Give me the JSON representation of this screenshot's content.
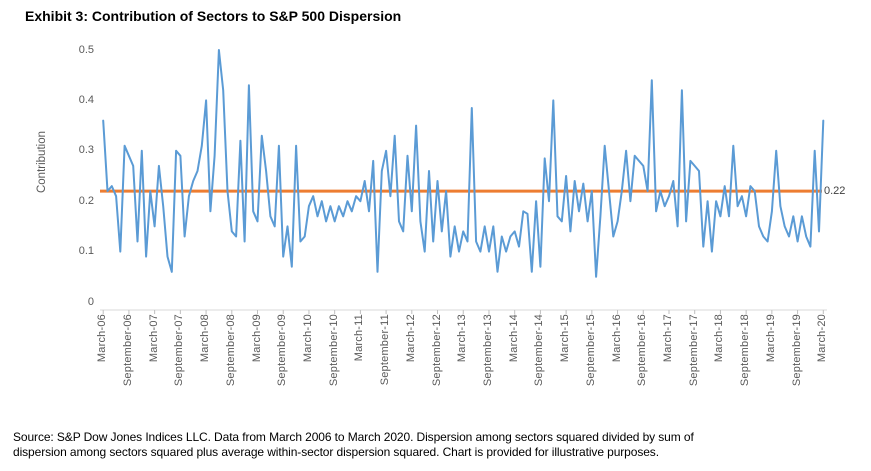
{
  "title": "Exhibit 3: Contribution of Sectors to S&P 500 Dispersion",
  "source_line1": "Source: S&P Dow Jones Indices LLC. Data from March 2006 to March 2020. Dispersion among sectors squared divided by sum of",
  "source_line2": "dispersion among sectors squared plus average within-sector dispersion squared. Chart is provided for illustrative purposes.",
  "chart_data": {
    "type": "line",
    "title": "Exhibit 3: Contribution of Sectors to S&P 500 Dispersion",
    "xlabel": "",
    "ylabel": "Contribution",
    "ylim": [
      0,
      0.5
    ],
    "yticks": [
      "0",
      "0.1",
      "0.2",
      "0.3",
      "0.4",
      "0.5"
    ],
    "ytick_values": [
      0,
      0.1,
      0.2,
      0.3,
      0.4,
      0.5
    ],
    "grid": false,
    "legend_position": "none",
    "x_start": "March 2006",
    "x_end": "March 2020",
    "frequency": "monthly",
    "xtick_labels": [
      "March-06",
      "September-06",
      "March-07",
      "September-07",
      "March-08",
      "September-08",
      "March-09",
      "September-09",
      "March-10",
      "September-10",
      "March-11",
      "September-11",
      "March-12",
      "September-12",
      "March-13",
      "September-13",
      "March-14",
      "September-14",
      "March-15",
      "September-15",
      "March-16",
      "September-16",
      "March-17",
      "September-17",
      "March-18",
      "September-18",
      "March-19",
      "September-19",
      "March-20"
    ],
    "series": [
      {
        "name": "Contribution of Sectors to S&P 500 Dispersion",
        "color": "#5B9BD5",
        "values": [
          0.36,
          0.22,
          0.23,
          0.21,
          0.1,
          0.31,
          0.29,
          0.27,
          0.12,
          0.3,
          0.09,
          0.22,
          0.15,
          0.27,
          0.19,
          0.09,
          0.06,
          0.3,
          0.29,
          0.13,
          0.21,
          0.24,
          0.26,
          0.31,
          0.4,
          0.18,
          0.29,
          0.5,
          0.42,
          0.22,
          0.14,
          0.13,
          0.32,
          0.12,
          0.43,
          0.18,
          0.16,
          0.33,
          0.26,
          0.17,
          0.15,
          0.31,
          0.09,
          0.15,
          0.07,
          0.31,
          0.12,
          0.13,
          0.19,
          0.21,
          0.17,
          0.2,
          0.16,
          0.19,
          0.16,
          0.19,
          0.17,
          0.2,
          0.18,
          0.21,
          0.2,
          0.24,
          0.18,
          0.28,
          0.06,
          0.26,
          0.3,
          0.21,
          0.33,
          0.16,
          0.14,
          0.29,
          0.18,
          0.35,
          0.16,
          0.1,
          0.26,
          0.12,
          0.24,
          0.14,
          0.22,
          0.09,
          0.15,
          0.1,
          0.14,
          0.12,
          0.385,
          0.12,
          0.1,
          0.15,
          0.1,
          0.15,
          0.06,
          0.13,
          0.1,
          0.13,
          0.14,
          0.11,
          0.18,
          0.175,
          0.06,
          0.2,
          0.07,
          0.285,
          0.2,
          0.4,
          0.17,
          0.16,
          0.25,
          0.14,
          0.24,
          0.18,
          0.235,
          0.16,
          0.22,
          0.05,
          0.17,
          0.31,
          0.22,
          0.13,
          0.16,
          0.22,
          0.3,
          0.2,
          0.29,
          0.28,
          0.27,
          0.22,
          0.44,
          0.18,
          0.22,
          0.19,
          0.21,
          0.24,
          0.15,
          0.42,
          0.16,
          0.28,
          0.27,
          0.26,
          0.11,
          0.2,
          0.1,
          0.2,
          0.17,
          0.23,
          0.17,
          0.31,
          0.19,
          0.21,
          0.17,
          0.23,
          0.22,
          0.15,
          0.13,
          0.12,
          0.18,
          0.3,
          0.19,
          0.15,
          0.13,
          0.17,
          0.12,
          0.17,
          0.13,
          0.11,
          0.3,
          0.14,
          0.36
        ]
      },
      {
        "name": "Reference line",
        "type": "reference-line",
        "color": "#ED7D31",
        "value": 0.22,
        "label": "0.22"
      }
    ]
  }
}
